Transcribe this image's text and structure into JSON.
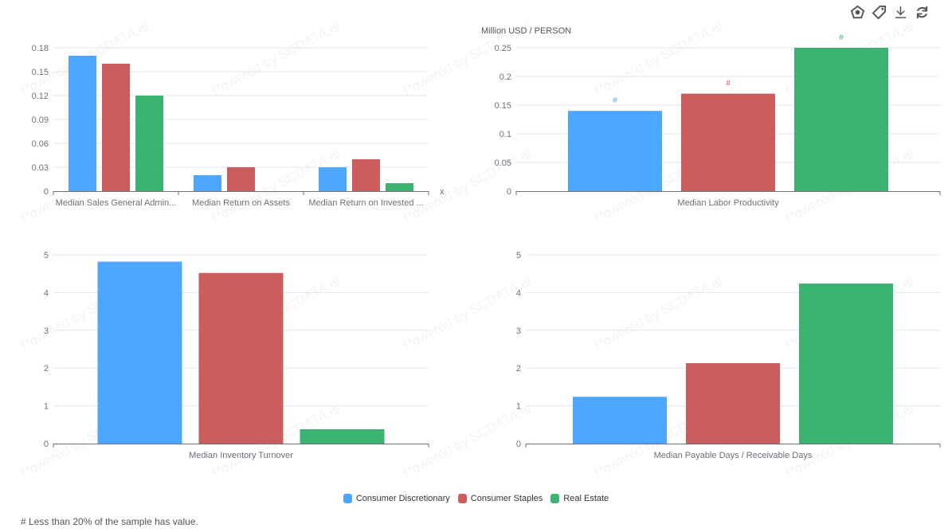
{
  "toolbar": {
    "icons": [
      "chart-type-icon",
      "tag-icon",
      "download-icon",
      "refresh-icon"
    ]
  },
  "series": [
    {
      "name": "Consumer Discretionary",
      "color": "#4da6ff"
    },
    {
      "name": "Consumer Staples",
      "color": "#cd5c5c"
    },
    {
      "name": "Real Estate",
      "color": "#3cb371"
    }
  ],
  "watermark": "Powered by SCDATA.ai",
  "footnote": "# Less than 20% of the sample has value.",
  "chart_data": [
    {
      "type": "bar",
      "categories": [
        "Median Sales General Admin...",
        "Median Return on Assets",
        "Median Return on Invested ..."
      ],
      "series": [
        {
          "name": "Consumer Discretionary",
          "values": [
            0.17,
            0.02,
            0.03
          ]
        },
        {
          "name": "Consumer Staples",
          "values": [
            0.16,
            0.03,
            0.04
          ]
        },
        {
          "name": "Real Estate",
          "values": [
            0.12,
            0,
            0.01
          ]
        }
      ],
      "yticks": [
        "0",
        "0.03",
        "0.06",
        "0.09",
        "0.12",
        "0.15",
        "0.18"
      ],
      "ylim": [
        0,
        0.18
      ],
      "xlabel": "x",
      "ylabel": "",
      "grid": true
    },
    {
      "type": "bar",
      "categories": [
        "Median Labor Productivity"
      ],
      "series": [
        {
          "name": "Consumer Discretionary",
          "values": [
            0.14
          ],
          "labels": [
            "#"
          ]
        },
        {
          "name": "Consumer Staples",
          "values": [
            0.17
          ],
          "labels": [
            "#"
          ]
        },
        {
          "name": "Real Estate",
          "values": [
            0.25
          ],
          "labels": [
            "#"
          ]
        }
      ],
      "yticks": [
        "0",
        "0.05",
        "0.1",
        "0.15",
        "0.2",
        "0.25"
      ],
      "ylim": [
        0,
        0.25
      ],
      "xlabel": "",
      "ylabel": "Million USD / PERSON",
      "grid": true
    },
    {
      "type": "bar",
      "categories": [
        "Median Inventory Turnover"
      ],
      "series": [
        {
          "name": "Consumer Discretionary",
          "values": [
            4.82
          ]
        },
        {
          "name": "Consumer Staples",
          "values": [
            4.52
          ]
        },
        {
          "name": "Real Estate",
          "values": [
            0.38
          ]
        }
      ],
      "yticks": [
        "0",
        "1",
        "2",
        "3",
        "4",
        "5"
      ],
      "ylim": [
        0,
        5
      ],
      "xlabel": "",
      "ylabel": "",
      "grid": true
    },
    {
      "type": "bar",
      "categories": [
        "Median Payable Days / Receivable Days"
      ],
      "series": [
        {
          "name": "Consumer Discretionary",
          "values": [
            1.24
          ]
        },
        {
          "name": "Consumer Staples",
          "values": [
            2.13
          ]
        },
        {
          "name": "Real Estate",
          "values": [
            4.24
          ]
        }
      ],
      "yticks": [
        "0",
        "1",
        "2",
        "3",
        "4",
        "5"
      ],
      "ylim": [
        0,
        5
      ],
      "xlabel": "",
      "ylabel": "",
      "grid": true
    }
  ]
}
